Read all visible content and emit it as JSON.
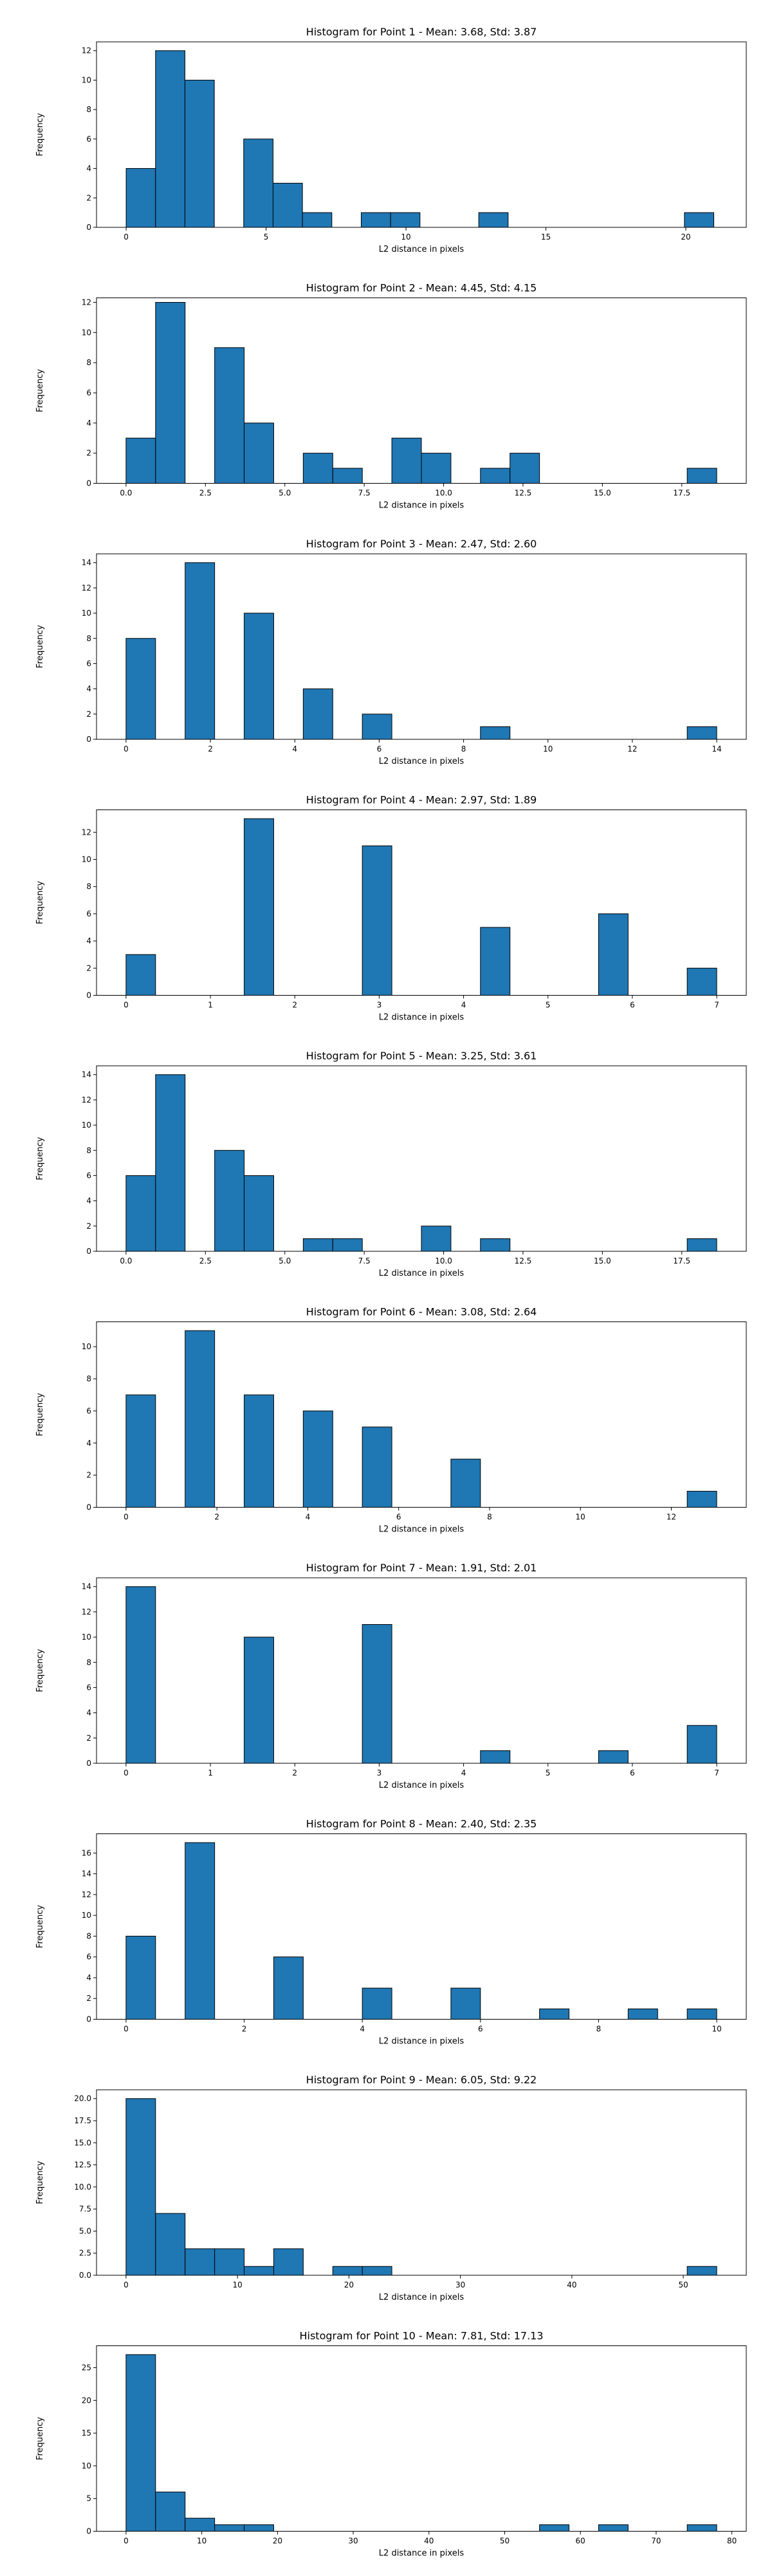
{
  "chart_data": [
    {
      "type": "bar",
      "title": "Histogram for Point 1 - Mean: 3.68, Std: 3.87",
      "xlabel": "L2 distance in pixels",
      "ylabel": "Frequency",
      "xlim": [
        -1.06,
        22.16
      ],
      "ylim": [
        0,
        12.6
      ],
      "xticks": [
        0,
        5,
        10,
        15,
        20
      ],
      "yticks": [
        0,
        2,
        4,
        6,
        8,
        10,
        12
      ],
      "bin_width": 1.05,
      "bins": [
        {
          "x0": 0.0,
          "value": 4
        },
        {
          "x0": 1.05,
          "value": 12
        },
        {
          "x0": 2.1,
          "value": 10
        },
        {
          "x0": 4.2,
          "value": 6
        },
        {
          "x0": 5.25,
          "value": 3
        },
        {
          "x0": 6.3,
          "value": 1
        },
        {
          "x0": 8.4,
          "value": 1
        },
        {
          "x0": 9.45,
          "value": 1
        },
        {
          "x0": 12.6,
          "value": 1
        },
        {
          "x0": 19.95,
          "value": 1
        }
      ]
    },
    {
      "type": "bar",
      "title": "Histogram for Point 2 - Mean: 4.45, Std: 4.15",
      "xlabel": "L2 distance in pixels",
      "ylabel": "Frequency",
      "xlim": [
        -0.93,
        19.53
      ],
      "ylim": [
        0,
        12.3
      ],
      "xticks": [
        0.0,
        2.5,
        5.0,
        7.5,
        10.0,
        12.5,
        15.0,
        17.5
      ],
      "yticks": [
        0,
        2,
        4,
        6,
        8,
        10,
        12
      ],
      "bin_width": 0.93,
      "bins": [
        {
          "x0": 0.0,
          "value": 3
        },
        {
          "x0": 0.93,
          "value": 12
        },
        {
          "x0": 2.79,
          "value": 9
        },
        {
          "x0": 3.72,
          "value": 4
        },
        {
          "x0": 5.58,
          "value": 2
        },
        {
          "x0": 6.51,
          "value": 1
        },
        {
          "x0": 8.37,
          "value": 3
        },
        {
          "x0": 9.3,
          "value": 2
        },
        {
          "x0": 11.16,
          "value": 1
        },
        {
          "x0": 12.09,
          "value": 2
        },
        {
          "x0": 17.67,
          "value": 1
        }
      ]
    },
    {
      "type": "bar",
      "title": "Histogram for Point 3 - Mean: 2.47, Std: 2.60",
      "xlabel": "L2 distance in pixels",
      "ylabel": "Frequency",
      "xlim": [
        -0.7,
        14.7
      ],
      "ylim": [
        0,
        14.7
      ],
      "xticks": [
        0,
        2,
        4,
        6,
        8,
        10,
        12,
        14
      ],
      "yticks": [
        0,
        2,
        4,
        6,
        8,
        10,
        12,
        14
      ],
      "bin_width": 0.7,
      "bins": [
        {
          "x0": 0.0,
          "value": 8
        },
        {
          "x0": 1.4,
          "value": 14
        },
        {
          "x0": 2.8,
          "value": 10
        },
        {
          "x0": 4.2,
          "value": 4
        },
        {
          "x0": 5.6,
          "value": 2
        },
        {
          "x0": 8.4,
          "value": 1
        },
        {
          "x0": 13.3,
          "value": 1
        }
      ]
    },
    {
      "type": "bar",
      "title": "Histogram for Point 4 - Mean: 2.97, Std: 1.89",
      "xlabel": "L2 distance in pixels",
      "ylabel": "Frequency",
      "xlim": [
        -0.35,
        7.35
      ],
      "ylim": [
        0,
        13.65
      ],
      "xticks": [
        0,
        1,
        2,
        3,
        4,
        5,
        6,
        7
      ],
      "yticks": [
        0,
        2,
        4,
        6,
        8,
        10,
        12
      ],
      "bin_width": 0.35,
      "bins": [
        {
          "x0": 0.0,
          "value": 3
        },
        {
          "x0": 1.4,
          "value": 13
        },
        {
          "x0": 2.8,
          "value": 11
        },
        {
          "x0": 4.2,
          "value": 5
        },
        {
          "x0": 5.6,
          "value": 6
        },
        {
          "x0": 6.65,
          "value": 2
        }
      ]
    },
    {
      "type": "bar",
      "title": "Histogram for Point 5 - Mean: 3.25, Std: 3.61",
      "xlabel": "L2 distance in pixels",
      "ylabel": "Frequency",
      "xlim": [
        -0.93,
        19.53
      ],
      "ylim": [
        0,
        14.7
      ],
      "xticks": [
        0.0,
        2.5,
        5.0,
        7.5,
        10.0,
        12.5,
        15.0,
        17.5
      ],
      "yticks": [
        0,
        2,
        4,
        6,
        8,
        10,
        12,
        14
      ],
      "bin_width": 0.93,
      "bins": [
        {
          "x0": 0.0,
          "value": 6
        },
        {
          "x0": 0.93,
          "value": 14
        },
        {
          "x0": 2.79,
          "value": 8
        },
        {
          "x0": 3.72,
          "value": 6
        },
        {
          "x0": 5.58,
          "value": 1
        },
        {
          "x0": 6.51,
          "value": 1
        },
        {
          "x0": 9.3,
          "value": 2
        },
        {
          "x0": 11.16,
          "value": 1
        },
        {
          "x0": 17.67,
          "value": 1
        }
      ]
    },
    {
      "type": "bar",
      "title": "Histogram for Point 6 - Mean: 3.08, Std: 2.64",
      "xlabel": "L2 distance in pixels",
      "ylabel": "Frequency",
      "xlim": [
        -0.65,
        13.65
      ],
      "ylim": [
        0,
        11.55
      ],
      "xticks": [
        0,
        2,
        4,
        6,
        8,
        10,
        12
      ],
      "yticks": [
        0,
        2,
        4,
        6,
        8,
        10
      ],
      "bin_width": 0.65,
      "bins": [
        {
          "x0": 0.0,
          "value": 7
        },
        {
          "x0": 1.3,
          "value": 11
        },
        {
          "x0": 2.6,
          "value": 7
        },
        {
          "x0": 3.9,
          "value": 6
        },
        {
          "x0": 5.2,
          "value": 5
        },
        {
          "x0": 7.15,
          "value": 3
        },
        {
          "x0": 12.35,
          "value": 1
        }
      ]
    },
    {
      "type": "bar",
      "title": "Histogram for Point 7 - Mean: 1.91, Std: 2.01",
      "xlabel": "L2 distance in pixels",
      "ylabel": "Frequency",
      "xlim": [
        -0.35,
        7.35
      ],
      "ylim": [
        0,
        14.7
      ],
      "xticks": [
        0,
        1,
        2,
        3,
        4,
        5,
        6,
        7
      ],
      "yticks": [
        0,
        2,
        4,
        6,
        8,
        10,
        12,
        14
      ],
      "bin_width": 0.35,
      "bins": [
        {
          "x0": 0.0,
          "value": 14
        },
        {
          "x0": 1.4,
          "value": 10
        },
        {
          "x0": 2.8,
          "value": 11
        },
        {
          "x0": 4.2,
          "value": 1
        },
        {
          "x0": 5.6,
          "value": 1
        },
        {
          "x0": 6.65,
          "value": 3
        }
      ]
    },
    {
      "type": "bar",
      "title": "Histogram for Point 8 - Mean: 2.40, Std: 2.35",
      "xlabel": "L2 distance in pixels",
      "ylabel": "Frequency",
      "xlim": [
        -0.5,
        10.5
      ],
      "ylim": [
        0,
        17.85
      ],
      "xticks": [
        0,
        2,
        4,
        6,
        8,
        10
      ],
      "yticks": [
        0,
        2,
        4,
        6,
        8,
        10,
        12,
        14,
        16
      ],
      "bin_width": 0.5,
      "bins": [
        {
          "x0": 0.0,
          "value": 8
        },
        {
          "x0": 1.0,
          "value": 17
        },
        {
          "x0": 2.5,
          "value": 6
        },
        {
          "x0": 4.0,
          "value": 3
        },
        {
          "x0": 5.5,
          "value": 3
        },
        {
          "x0": 7.0,
          "value": 1
        },
        {
          "x0": 8.5,
          "value": 1
        },
        {
          "x0": 9.5,
          "value": 1
        }
      ]
    },
    {
      "type": "bar",
      "title": "Histogram for Point 9 - Mean: 6.05, Std: 9.22",
      "xlabel": "L2 distance in pixels",
      "ylabel": "Frequency",
      "xlim": [
        -2.65,
        55.65
      ],
      "ylim": [
        0,
        21.0
      ],
      "xticks": [
        0,
        10,
        20,
        30,
        40,
        50
      ],
      "yticks": [
        0.0,
        2.5,
        5.0,
        7.5,
        10.0,
        12.5,
        15.0,
        17.5,
        20.0
      ],
      "bin_width": 2.65,
      "bins": [
        {
          "x0": 0.0,
          "value": 20
        },
        {
          "x0": 2.65,
          "value": 7
        },
        {
          "x0": 5.3,
          "value": 3
        },
        {
          "x0": 7.95,
          "value": 3
        },
        {
          "x0": 10.6,
          "value": 1
        },
        {
          "x0": 13.25,
          "value": 3
        },
        {
          "x0": 18.55,
          "value": 1
        },
        {
          "x0": 21.2,
          "value": 1
        },
        {
          "x0": 50.35,
          "value": 1
        }
      ]
    },
    {
      "type": "bar",
      "title": "Histogram for Point 10 - Mean: 7.81, Std: 17.13",
      "xlabel": "L2 distance in pixels",
      "ylabel": "Frequency",
      "xlim": [
        -3.9,
        81.9
      ],
      "ylim": [
        0,
        28.35
      ],
      "xticks": [
        0,
        10,
        20,
        30,
        40,
        50,
        60,
        70,
        80
      ],
      "yticks": [
        0,
        5,
        10,
        15,
        20,
        25
      ],
      "bin_width": 3.9,
      "bins": [
        {
          "x0": 0.0,
          "value": 27
        },
        {
          "x0": 3.9,
          "value": 6
        },
        {
          "x0": 7.8,
          "value": 2
        },
        {
          "x0": 11.7,
          "value": 1
        },
        {
          "x0": 15.6,
          "value": 1
        },
        {
          "x0": 54.6,
          "value": 1
        },
        {
          "x0": 62.4,
          "value": 1
        },
        {
          "x0": 74.1,
          "value": 1
        }
      ]
    }
  ]
}
